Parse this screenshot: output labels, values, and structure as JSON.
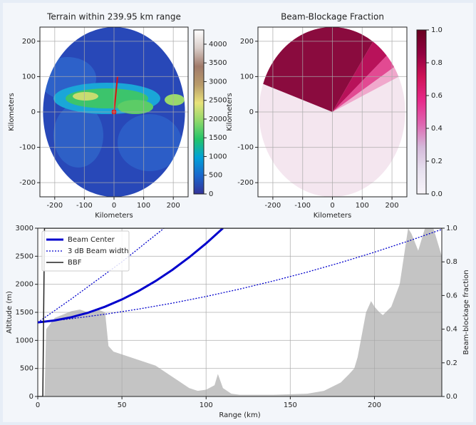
{
  "chart_data": [
    {
      "type": "heatmap",
      "title": "Terrain within 239.95 km range",
      "xlabel": "Kilometers",
      "ylabel": "Kilometers",
      "xlim": [
        -250,
        250
      ],
      "ylim": [
        -240,
        240
      ],
      "xticks": [
        -200,
        -100,
        0,
        100,
        200
      ],
      "yticks": [
        -200,
        -100,
        0,
        100,
        200
      ],
      "grid": true,
      "colorbar": {
        "lim": [
          0,
          4380
        ],
        "ticks": [
          0,
          500,
          1000,
          1500,
          2000,
          2500,
          3000,
          3500,
          4000
        ],
        "colors": [
          "#333399",
          "#1a66cc",
          "#00a0d8",
          "#22c46a",
          "#8ed86a",
          "#e8e27a",
          "#b89a6a",
          "#a07a6a",
          "#d8ccc8",
          "#ffffff"
        ]
      }
    },
    {
      "type": "heatmap",
      "title": "Beam-Blockage Fraction",
      "xlabel": "Kilometers",
      "ylabel": "Kilometers",
      "xlim": [
        -250,
        250
      ],
      "ylim": [
        -240,
        240
      ],
      "xticks": [
        -200,
        -100,
        0,
        100,
        200
      ],
      "yticks": [
        -200,
        -100,
        0,
        100,
        200
      ],
      "grid": true,
      "colorbar": {
        "lim": [
          0,
          1
        ],
        "ticks": [
          {
            "value": 0,
            "label": "0.0"
          },
          0.2,
          0.4,
          0.6,
          0.8,
          {
            "value": 1,
            "label": "1.0"
          }
        ],
        "colors": [
          "#f7f4f9",
          "#e7e1ef",
          "#d4b9da",
          "#df65b0",
          "#e7298a",
          "#ce1256",
          "#91003f",
          "#67001f"
        ]
      }
    },
    {
      "type": "line",
      "xlabel": "Range (km)",
      "ylabel": "Altitude (m)",
      "y2label": "Beam-blockage fraction",
      "xlim": [
        0,
        240
      ],
      "ylim": [
        0,
        3000
      ],
      "y2lim": [
        0,
        1
      ],
      "xticks": [
        0,
        50,
        100,
        150,
        200
      ],
      "yticks": [
        0,
        500,
        1000,
        1500,
        2000,
        2500,
        3000
      ],
      "y2ticks": [
        {
          "value": 0,
          "label": "0.0"
        },
        0.2,
        0.4,
        0.6,
        0.8,
        {
          "value": 1,
          "label": "1.0"
        }
      ],
      "grid": true,
      "legend": "upper-left",
      "area": {
        "color": "#c4c4c4",
        "x": [
          0,
          2,
          4,
          5,
          10,
          20,
          25,
          30,
          35,
          40,
          42,
          45,
          50,
          60,
          70,
          80,
          90,
          95,
          100,
          105,
          107,
          110,
          115,
          120,
          140,
          160,
          170,
          180,
          185,
          188,
          190,
          195,
          198,
          200,
          203,
          205,
          210,
          215,
          218,
          220,
          222,
          226,
          230,
          235,
          240
        ],
        "values": [
          0,
          0,
          0,
          1200,
          1400,
          1520,
          1550,
          1500,
          1560,
          1500,
          900,
          800,
          750,
          650,
          550,
          350,
          150,
          100,
          120,
          200,
          400,
          150,
          50,
          30,
          30,
          50,
          100,
          250,
          400,
          500,
          700,
          1500,
          1700,
          1600,
          1500,
          1450,
          1600,
          2000,
          2600,
          3000,
          2900,
          2600,
          3000,
          3000,
          2500
        ]
      },
      "series": [
        {
          "name": "Beam Center",
          "color": "#0000cc",
          "linestyle": "solid",
          "linewidth": 3,
          "x": [
            0,
            10,
            20,
            30,
            40,
            50,
            60,
            70,
            80,
            90,
            100,
            110
          ],
          "values": [
            1320,
            1355,
            1413,
            1495,
            1601,
            1730,
            1882,
            2058,
            2258,
            2482,
            2729,
            3000
          ]
        },
        {
          "name": "3 dB Beam width",
          "color": "#0000cc",
          "linestyle": "dotted",
          "linewidth": 1.3,
          "x": [
            0,
            10,
            20,
            30,
            40,
            50,
            60,
            70,
            75
          ],
          "values": [
            1320,
            1530,
            1740,
            1960,
            2180,
            2400,
            2640,
            2880,
            3000
          ]
        },
        {
          "name": "3 dB Beam width",
          "color": "#0000cc",
          "linestyle": "dotted",
          "linewidth": 1.3,
          "x": [
            0,
            20,
            40,
            60,
            80,
            100,
            120,
            140,
            160,
            180,
            200,
            220,
            240
          ],
          "values": [
            1320,
            1387,
            1466,
            1559,
            1664,
            1783,
            1915,
            2060,
            2217,
            2388,
            2572,
            2769,
            2979
          ]
        },
        {
          "name": "BBF",
          "color": "#222222",
          "linestyle": "solid",
          "linewidth": 1.5,
          "axis": "y2",
          "x": [
            0,
            3,
            4,
            240
          ],
          "values": [
            0,
            0,
            1,
            1
          ]
        }
      ]
    }
  ]
}
